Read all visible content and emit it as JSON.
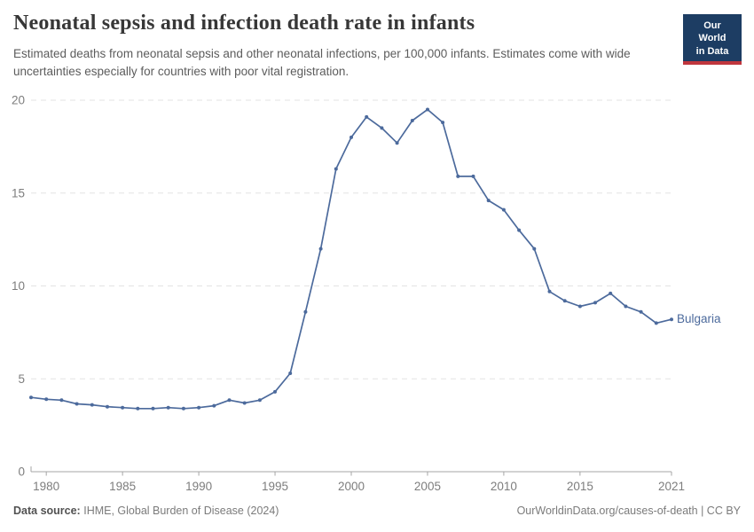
{
  "header": {
    "title": "Neonatal sepsis and infection death rate in infants",
    "subtitle": "Estimated deaths from neonatal sepsis and other neonatal infections, per 100,000 infants. Estimates come with wide uncertainties especially for countries with poor vital registration."
  },
  "logo": {
    "line1": "Our World",
    "line2": "in Data",
    "bg_color": "#1d3d63",
    "accent_color": "#c0363d"
  },
  "footer": {
    "datasource_label": "Data source:",
    "datasource_value": "IHME, Global Burden of Disease (2024)",
    "link_text": "OurWorldinData.org/causes-of-death | CC BY"
  },
  "chart_data": {
    "type": "line",
    "title": "Neonatal sepsis and infection death rate in infants",
    "xlabel": "",
    "ylabel": "",
    "x": [
      1979,
      1980,
      1981,
      1982,
      1983,
      1984,
      1985,
      1986,
      1987,
      1988,
      1989,
      1990,
      1991,
      1992,
      1993,
      1994,
      1995,
      1996,
      1997,
      1998,
      1999,
      2000,
      2001,
      2002,
      2003,
      2004,
      2005,
      2006,
      2007,
      2008,
      2009,
      2010,
      2011,
      2012,
      2013,
      2014,
      2015,
      2016,
      2017,
      2018,
      2019,
      2020,
      2021
    ],
    "series": [
      {
        "name": "Bulgaria",
        "color": "#4c6a9c",
        "values": [
          4.0,
          3.9,
          3.85,
          3.65,
          3.6,
          3.5,
          3.45,
          3.4,
          3.4,
          3.45,
          3.4,
          3.45,
          3.55,
          3.85,
          3.7,
          3.85,
          4.3,
          5.3,
          8.6,
          12.0,
          16.3,
          18.0,
          19.1,
          18.5,
          17.7,
          18.9,
          19.5,
          18.8,
          15.9,
          15.9,
          14.6,
          14.1,
          13.0,
          12.0,
          9.7,
          9.2,
          8.9,
          9.1,
          9.6,
          8.9,
          8.6,
          8.0,
          8.2
        ]
      }
    ],
    "ylim": [
      0,
      20
    ],
    "yticks": [
      0,
      5,
      10,
      15,
      20
    ],
    "xticks": [
      1980,
      1985,
      1990,
      1995,
      2000,
      2005,
      2010,
      2015,
      2021
    ],
    "grid": "horizontal-dashed",
    "legend": "line-end-label",
    "colors": {
      "grid": "#e3e3e3",
      "axis": "#a5a5a5",
      "tick_text": "#7d7d7d"
    }
  }
}
